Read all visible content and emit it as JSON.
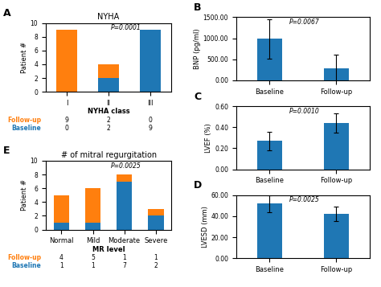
{
  "chart_data": [
    {
      "type": "bar",
      "stacked": true,
      "data_labels": true,
      "panel_label": "A",
      "title": "NYHA",
      "annotation": "P=0.0001",
      "xlabel": "NYHA class",
      "ylabel": "Patient #",
      "categories": [
        "I",
        "II",
        "III"
      ],
      "series": [
        {
          "name": "Baseline",
          "values": [
            0,
            2,
            9
          ]
        },
        {
          "name": "Follow-up",
          "values": [
            9,
            2,
            0
          ]
        }
      ],
      "ylim": [
        0,
        10
      ],
      "yticks": [
        0,
        2,
        4,
        6,
        8,
        10
      ]
    },
    {
      "type": "bar",
      "stacked": true,
      "data_labels": true,
      "panel_label": "E",
      "title": "# of mitral regurgitation",
      "annotation": "P=0.0025",
      "xlabel": "MR level",
      "ylabel": "Patient #",
      "categories": [
        "Normal",
        "Mild",
        "Moderate",
        "Severe"
      ],
      "series": [
        {
          "name": "Baseline",
          "values": [
            1,
            1,
            7,
            2
          ]
        },
        {
          "name": "Follow-up",
          "values": [
            4,
            5,
            1,
            1
          ]
        }
      ],
      "ylim": [
        0,
        10
      ],
      "yticks": [
        0,
        2,
        4,
        6,
        8,
        10
      ]
    },
    {
      "type": "bar",
      "panel_label": "B",
      "annotation": "P=0.0067",
      "ylabel": "BNP (pg/ml)",
      "categories": [
        "Baseline",
        "Follow-up"
      ],
      "values": [
        990,
        280
      ],
      "errors": [
        470,
        330
      ],
      "ylim": [
        0,
        1500
      ],
      "yticks": [
        {
          "value": 0,
          "label": "0.00"
        },
        {
          "value": 500,
          "label": "500.00"
        },
        {
          "value": 1000,
          "label": "1000.00"
        },
        {
          "value": 1500,
          "label": "1500.00"
        }
      ]
    },
    {
      "type": "bar",
      "panel_label": "C",
      "annotation": "P=0.0010",
      "ylabel": "LVEF (%)",
      "categories": [
        "Baseline",
        "Follow-up"
      ],
      "values": [
        0.27,
        0.44
      ],
      "errors": [
        0.09,
        0.09
      ],
      "ylim": [
        0,
        0.6
      ],
      "yticks": [
        {
          "value": 0,
          "label": "0.00"
        },
        {
          "value": 0.2,
          "label": "0.20"
        },
        {
          "value": 0.4,
          "label": "0.40"
        },
        {
          "value": 0.6,
          "label": "0.60"
        }
      ]
    },
    {
      "type": "bar",
      "panel_label": "D",
      "annotation": "P=0.0025",
      "ylabel": "LVESD (mm)",
      "categories": [
        "Baseline",
        "Follow-up"
      ],
      "values": [
        52,
        42
      ],
      "errors": [
        8,
        7
      ],
      "ylim": [
        0,
        60
      ],
      "yticks": [
        {
          "value": 0,
          "label": "0.00"
        },
        {
          "value": 20,
          "label": "20.00"
        },
        {
          "value": 40,
          "label": "40.00"
        },
        {
          "value": 60,
          "label": "60.00"
        }
      ]
    }
  ]
}
